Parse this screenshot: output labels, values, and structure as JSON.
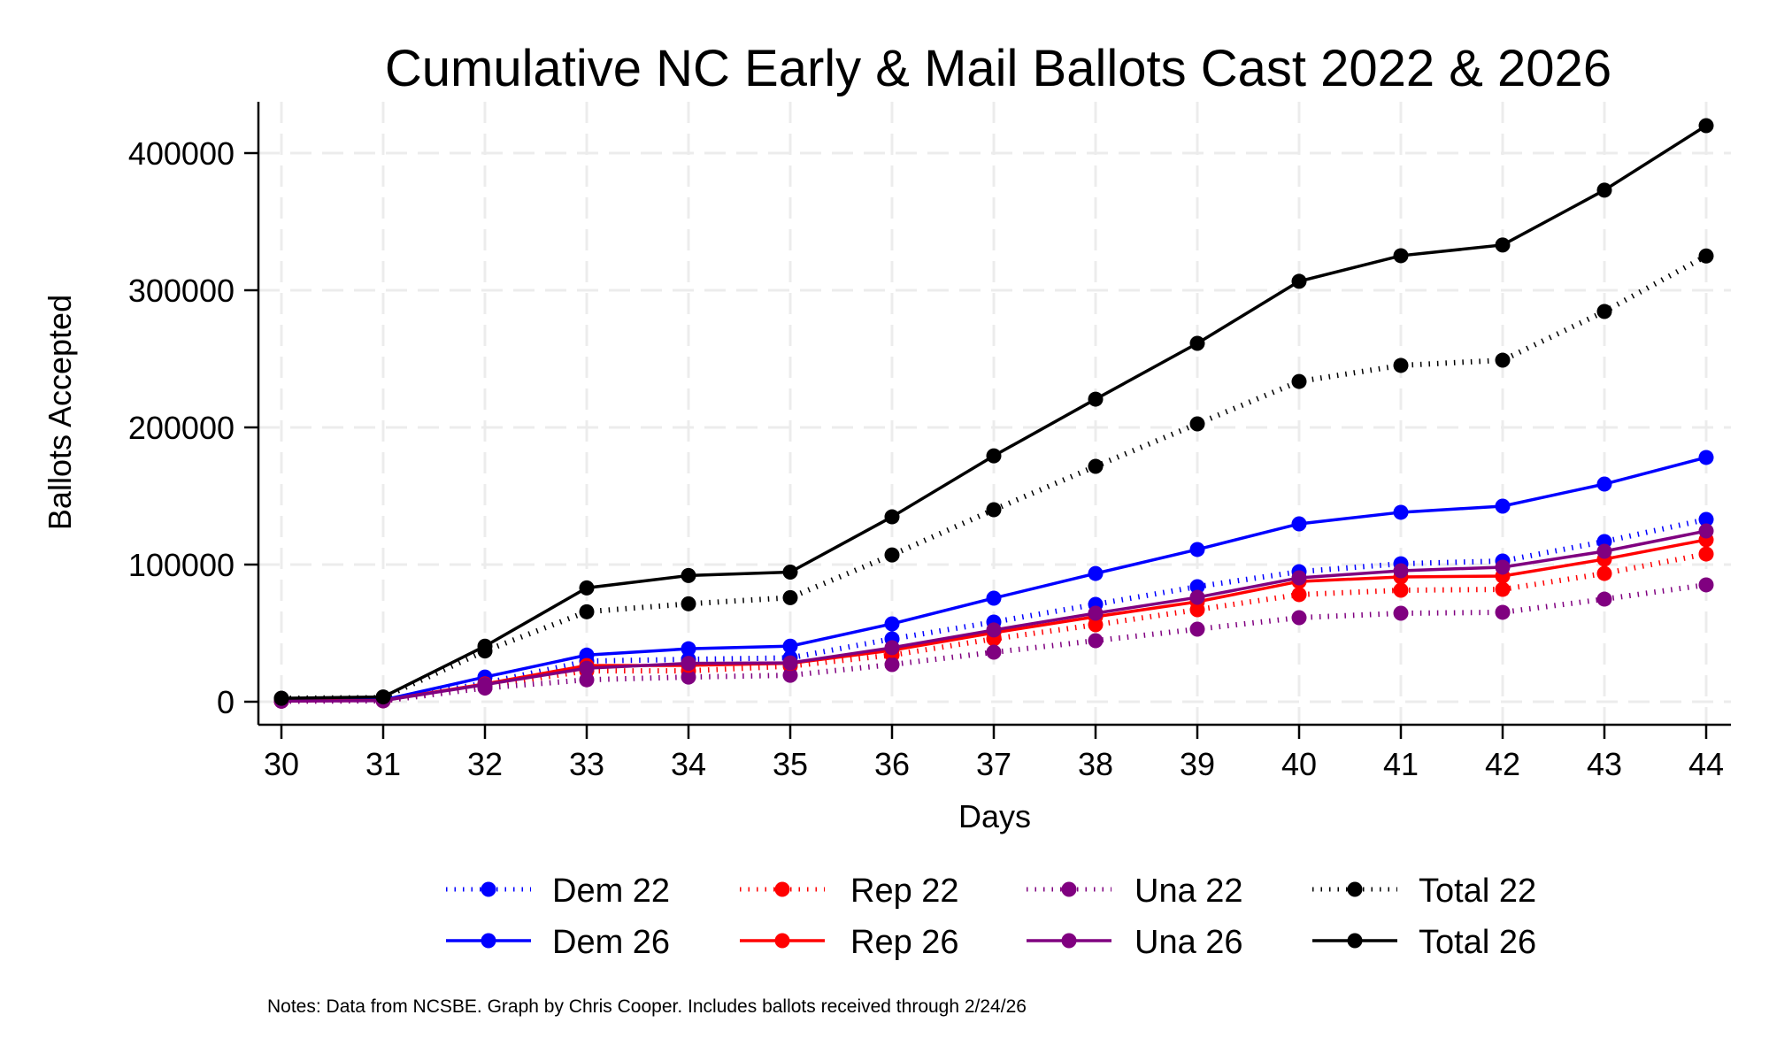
{
  "chart_data": {
    "type": "line",
    "title": "Cumulative NC Early & Mail Ballots Cast 2022 & 2026",
    "xlabel": "Days",
    "ylabel": "Ballots Accepted",
    "x": [
      30,
      31,
      32,
      33,
      34,
      35,
      36,
      37,
      38,
      39,
      40,
      41,
      42,
      43,
      44
    ],
    "xlim": [
      30,
      44
    ],
    "ylim": [
      0,
      420000
    ],
    "xticks": [
      30,
      31,
      32,
      33,
      34,
      35,
      36,
      37,
      38,
      39,
      40,
      41,
      42,
      43,
      44
    ],
    "yticks": [
      0,
      100000,
      200000,
      300000,
      400000
    ],
    "ytick_labels": [
      "0",
      "100000",
      "200000",
      "300000",
      "400000"
    ],
    "grid": true,
    "legend_position": "bottom",
    "series": [
      {
        "name": "Dem 22",
        "color": "#0000ff",
        "style": "dotted",
        "values": [
          700,
          1000,
          13500,
          29600,
          30900,
          32000,
          45800,
          58100,
          71000,
          83900,
          94800,
          100600,
          102600,
          116800,
          132900
        ]
      },
      {
        "name": "Rep 22",
        "color": "#ff0000",
        "style": "dotted",
        "values": [
          500,
          800,
          11500,
          22500,
          22500,
          26000,
          34000,
          45800,
          56100,
          67100,
          78100,
          81300,
          81900,
          93500,
          107700
        ]
      },
      {
        "name": "Una 22",
        "color": "#800080",
        "style": "dotted",
        "values": [
          400,
          600,
          10000,
          16000,
          18000,
          19300,
          27100,
          36100,
          44500,
          52900,
          61300,
          64500,
          65200,
          74800,
          85200
        ]
      },
      {
        "name": "Total 22",
        "color": "#000000",
        "style": "dotted",
        "values": [
          2500,
          3000,
          37000,
          65600,
          71400,
          75900,
          107000,
          140000,
          171600,
          202600,
          233500,
          245200,
          249000,
          284500,
          325000
        ]
      },
      {
        "name": "Dem 26",
        "color": "#0000ff",
        "style": "solid",
        "values": [
          800,
          1200,
          18000,
          34000,
          38600,
          40500,
          56800,
          75500,
          93500,
          111000,
          129700,
          138100,
          142600,
          158700,
          178100
        ]
      },
      {
        "name": "Rep 26",
        "color": "#ff0000",
        "style": "solid",
        "values": [
          600,
          900,
          13000,
          26400,
          26500,
          28000,
          37500,
          50300,
          62000,
          72900,
          87700,
          91000,
          91600,
          103900,
          118100
        ]
      },
      {
        "name": "Una 26",
        "color": "#800080",
        "style": "solid",
        "values": [
          500,
          800,
          12500,
          24400,
          28000,
          28300,
          39400,
          52300,
          64500,
          76100,
          90300,
          95500,
          98100,
          109700,
          124500
        ]
      },
      {
        "name": "Total 26",
        "color": "#000000",
        "style": "solid",
        "values": [
          2500,
          3500,
          40500,
          83000,
          92000,
          94500,
          134800,
          179300,
          220600,
          261300,
          306500,
          325200,
          333000,
          373000,
          420000
        ]
      }
    ],
    "legend": [
      [
        "Dem 22",
        "Rep 22",
        "Una 22",
        "Total 22"
      ],
      [
        "Dem 26",
        "Rep 26",
        "Una 26",
        "Total 26"
      ]
    ],
    "notes": "Notes: Data from NCSBE. Graph by Chris Cooper. Includes ballots received through 2/24/26"
  }
}
